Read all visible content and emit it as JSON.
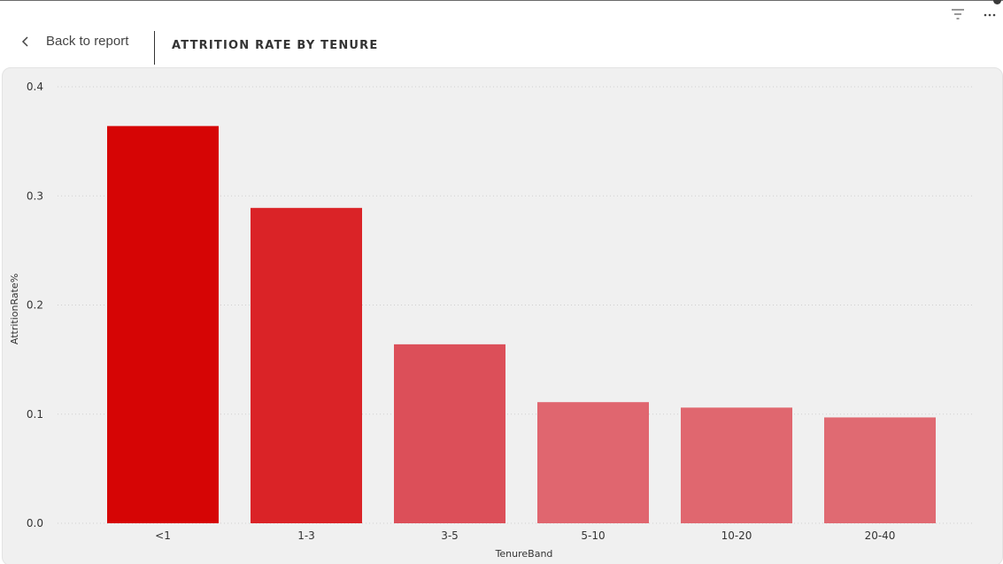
{
  "header": {
    "back_label": "Back to report",
    "title": "ATTRITION RATE BY TENURE"
  },
  "toolbar": {
    "icons": [
      "filter-icon",
      "more-options-icon"
    ]
  },
  "colors": {
    "bar_colors": [
      "#d60505",
      "#da2327",
      "#dc4f59",
      "#e0666f",
      "#e0676f",
      "#e06a72"
    ],
    "card_background": "#f0f0f0"
  },
  "chart_data": {
    "type": "bar",
    "xlabel": "TenureBand",
    "ylabel": "AttritionRate%",
    "categories": [
      "<1",
      "1-3",
      "3-5",
      "5-10",
      "10-20",
      "20-40"
    ],
    "values": [
      0.364,
      0.289,
      0.164,
      0.111,
      0.106,
      0.097
    ],
    "ylim": [
      0,
      0.4
    ],
    "yticks": [
      "0.0",
      "0.1",
      "0.2",
      "0.3",
      "0.4"
    ],
    "grid": true,
    "legend": "none"
  }
}
